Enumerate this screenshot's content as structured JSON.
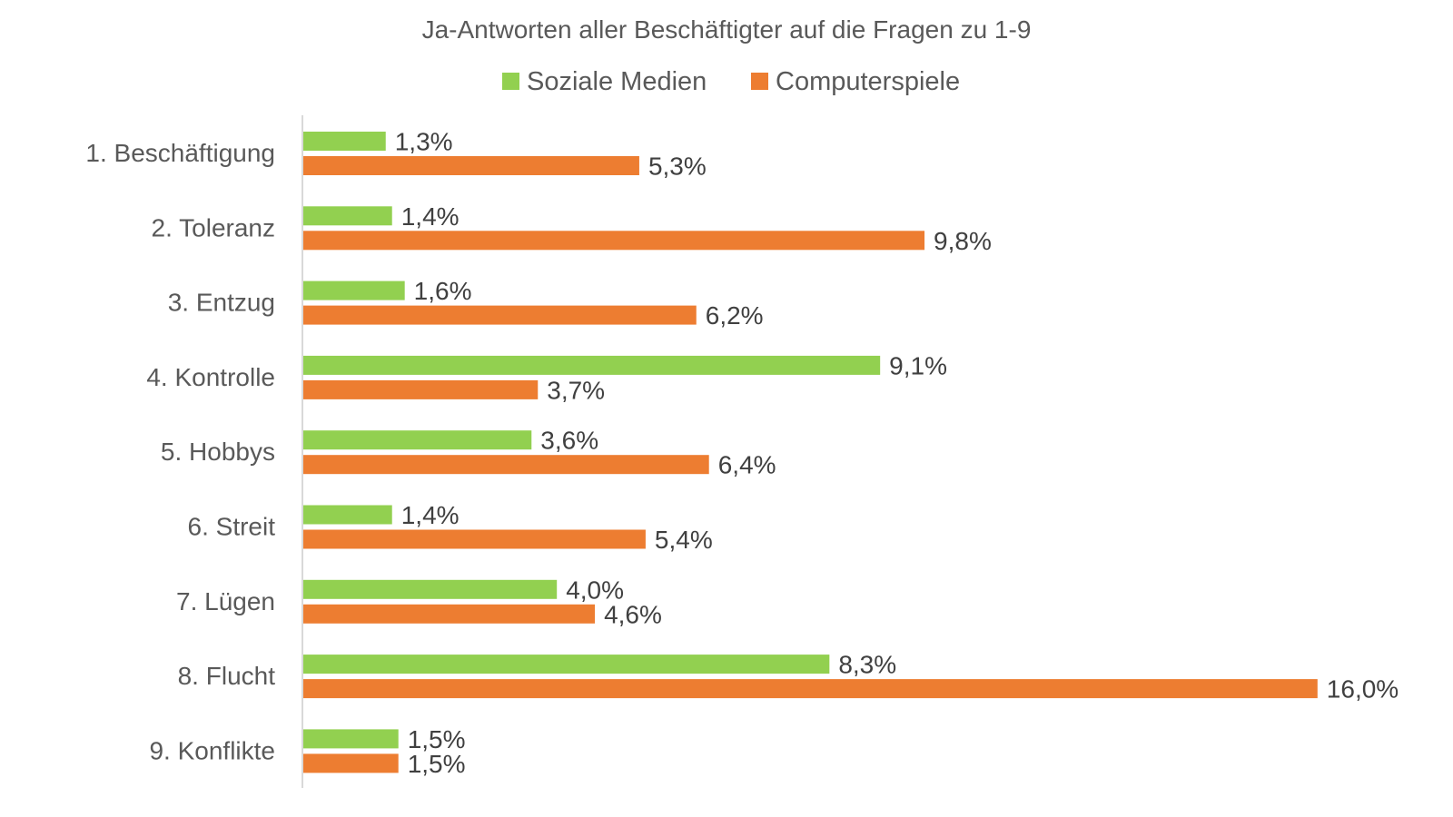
{
  "chart_data": {
    "type": "bar",
    "orientation": "horizontal",
    "title": "Ja-Antworten aller Beschäftigter auf die Fragen zu 1-9",
    "xlabel": "",
    "ylabel": "",
    "grid": false,
    "legend_position": "top",
    "value_suffix": "%",
    "decimal_separator": ",",
    "xlim": [
      0,
      16
    ],
    "categories": [
      "1. Beschäftigung",
      "2. Toleranz",
      "3. Entzug",
      "4. Kontrolle",
      "5. Hobbys",
      "6. Streit",
      "7. Lügen",
      "8. Flucht",
      "9. Konflikte"
    ],
    "series": [
      {
        "name": "Soziale Medien",
        "color": "#92D050",
        "values": [
          1.3,
          1.4,
          1.6,
          9.1,
          3.6,
          1.4,
          4.0,
          8.3,
          1.5
        ]
      },
      {
        "name": "Computerspiele",
        "color": "#ED7D31",
        "values": [
          5.3,
          9.8,
          6.2,
          3.7,
          6.4,
          5.4,
          4.6,
          16.0,
          1.5
        ]
      }
    ]
  }
}
